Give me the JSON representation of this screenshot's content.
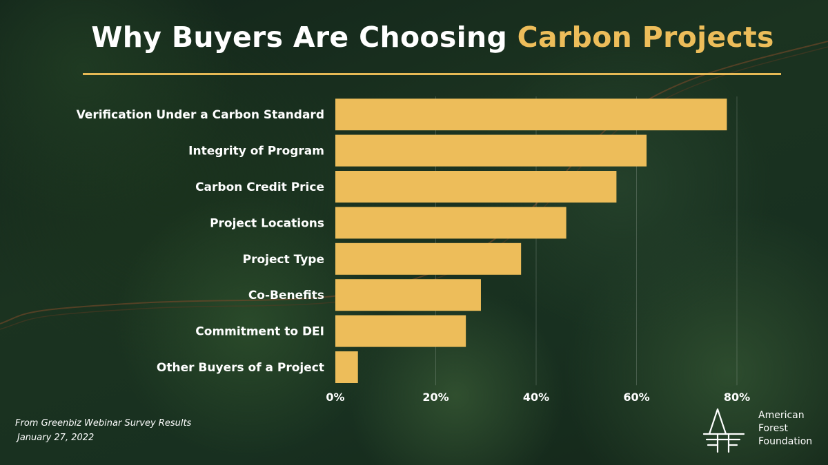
{
  "title": {
    "main": "Why Buyers Are Choosing",
    "accent": "Carbon Projects"
  },
  "colors": {
    "bar": "#edbd5a",
    "accent": "#edbd5a",
    "text": "#ffffff",
    "background": "#1a3020"
  },
  "chart_data": {
    "type": "bar",
    "orientation": "horizontal",
    "categories": [
      "Verification Under a Carbon Standard",
      "Integrity of Program",
      "Carbon Credit Price",
      "Project Locations",
      "Project Type",
      "Co-Benefits",
      "Commitment to DEI",
      "Other Buyers of a Project"
    ],
    "values": [
      78,
      62,
      56,
      46,
      37,
      29,
      26,
      4.5
    ],
    "xlim": [
      0,
      80
    ],
    "xticks": [
      0,
      20,
      40,
      60,
      80
    ],
    "xtick_labels": [
      "0%",
      "20%",
      "40%",
      "60%",
      "80%"
    ],
    "grid": true,
    "legend": "none"
  },
  "source": {
    "line1": "From Greenbiz Webinar Survey Results",
    "line2": "January 27, 2022"
  },
  "logo": {
    "line1": "American",
    "line2": "Forest",
    "line3": "Foundation",
    "icon": "tree-letters-icon"
  }
}
